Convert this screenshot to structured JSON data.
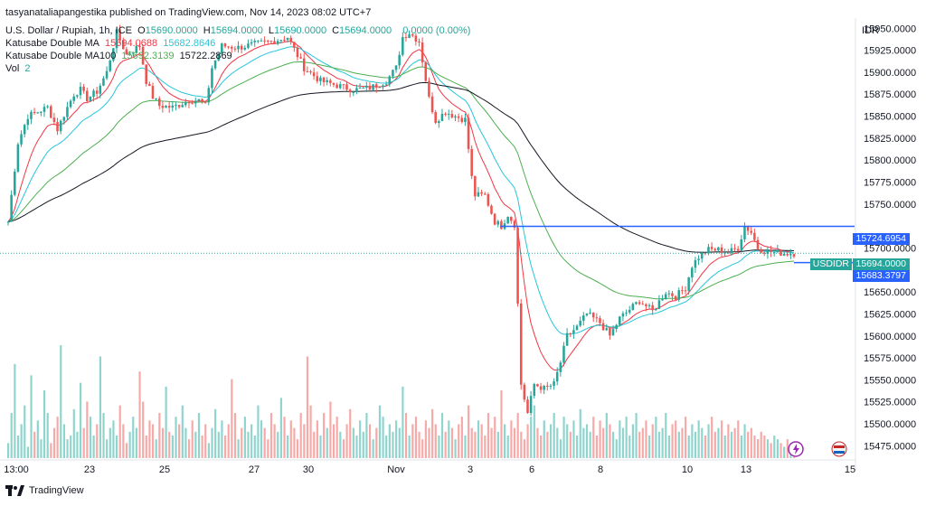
{
  "publisher_line": "tasyanataliapangestika published on TradingView.com, Nov 14, 2023 08:02 UTC+7",
  "legend": {
    "symbol": "U.S. Dollar / Rupiah, 1h, ICE",
    "ohlc": [
      {
        "label": "O",
        "value": "15690.0000"
      },
      {
        "label": "H",
        "value": "15694.0000"
      },
      {
        "label": "L",
        "value": "15690.0000"
      },
      {
        "label": "C",
        "value": "15694.0000"
      }
    ],
    "change": "0.0000 (0.00%)",
    "ma1": {
      "name": "Katusabe Double MA",
      "v1": "15694.0688",
      "v2": "15682.8646",
      "c1": "#f23645",
      "c2": "#26c6da"
    },
    "ma2": {
      "name": "Katusabe Double MA100",
      "v1": "15692.3139",
      "v2": "15722.2869",
      "c1": "#4caf50",
      "c2": "#131722"
    },
    "vol": {
      "name": "Vol",
      "value": "2",
      "color": "#26a69a"
    }
  },
  "currency": "IDR",
  "footer_brand": "TradingView",
  "price_tags": {
    "upper": {
      "value": "15724.6954",
      "color": "#2962ff"
    },
    "current": {
      "symbol": "USDIDR",
      "value": "15694.0000",
      "color": "#26a69a"
    },
    "lower": {
      "value": "15683.3797",
      "color": "#2962ff"
    }
  },
  "chart_data": {
    "type": "candlestick",
    "y_ticks": [
      "15950.0000",
      "15925.0000",
      "15900.0000",
      "15875.0000",
      "15850.0000",
      "15825.0000",
      "15800.0000",
      "15775.0000",
      "15750.0000",
      "15700.0000",
      "15650.0000",
      "15625.0000",
      "15600.0000",
      "15575.0000",
      "15550.0000",
      "15525.0000",
      "15500.0000",
      "15475.0000"
    ],
    "ylim": [
      15462,
      15962
    ],
    "x_ticks": [
      "13:00",
      "23",
      "25",
      "27",
      "30",
      "Nov",
      "3",
      "6",
      "8",
      "10",
      "13",
      "15"
    ],
    "horizontal_levels": [
      15724.6954,
      15683.3797
    ],
    "current_price": 15694.0,
    "close_path": [
      [
        0,
        15730
      ],
      [
        3,
        15820
      ],
      [
        6,
        15850
      ],
      [
        9,
        15855
      ],
      [
        12,
        15860
      ],
      [
        15,
        15835
      ],
      [
        18,
        15860
      ],
      [
        20,
        15875
      ],
      [
        22,
        15880
      ],
      [
        24,
        15870
      ],
      [
        27,
        15878
      ],
      [
        30,
        15900
      ],
      [
        33,
        15945
      ],
      [
        36,
        15920
      ],
      [
        38,
        15925
      ],
      [
        40,
        15930
      ],
      [
        42,
        15890
      ],
      [
        44,
        15872
      ],
      [
        46,
        15862
      ],
      [
        50,
        15860
      ],
      [
        55,
        15868
      ],
      [
        58,
        15868
      ],
      [
        60,
        15862
      ],
      [
        62,
        15905
      ],
      [
        65,
        15930
      ],
      [
        70,
        15928
      ],
      [
        75,
        15932
      ],
      [
        80,
        15935
      ],
      [
        85,
        15940
      ],
      [
        90,
        15905
      ],
      [
        95,
        15890
      ],
      [
        100,
        15885
      ],
      [
        105,
        15880
      ],
      [
        110,
        15882
      ],
      [
        115,
        15890
      ],
      [
        118,
        15905
      ],
      [
        120,
        15940
      ],
      [
        122,
        15945
      ],
      [
        125,
        15935
      ],
      [
        128,
        15870
      ],
      [
        130,
        15845
      ],
      [
        133,
        15855
      ],
      [
        136,
        15850
      ],
      [
        139,
        15846
      ],
      [
        141,
        15780
      ],
      [
        142,
        15760
      ],
      [
        145,
        15760
      ],
      [
        148,
        15730
      ],
      [
        150,
        15725
      ],
      [
        152,
        15738
      ],
      [
        154,
        15727
      ],
      [
        156,
        15545
      ],
      [
        158,
        15512
      ],
      [
        160,
        15545
      ],
      [
        163,
        15540
      ],
      [
        166,
        15545
      ],
      [
        168,
        15570
      ],
      [
        170,
        15600
      ],
      [
        173,
        15610
      ],
      [
        176,
        15625
      ],
      [
        180,
        15615
      ],
      [
        183,
        15600
      ],
      [
        186,
        15620
      ],
      [
        189,
        15630
      ],
      [
        192,
        15640
      ],
      [
        196,
        15628
      ],
      [
        200,
        15650
      ],
      [
        203,
        15645
      ],
      [
        206,
        15655
      ],
      [
        208,
        15680
      ],
      [
        210,
        15690
      ],
      [
        213,
        15698
      ],
      [
        216,
        15698
      ],
      [
        219,
        15695
      ],
      [
        222,
        15700
      ],
      [
        224,
        15725
      ],
      [
        226,
        15718
      ],
      [
        228,
        15700
      ],
      [
        230,
        15697
      ],
      [
        233,
        15695
      ],
      [
        236,
        15694
      ],
      [
        239,
        15694
      ]
    ],
    "volumes": [
      4,
      12,
      25,
      6,
      9,
      14,
      3,
      22,
      7,
      10,
      5,
      18,
      12,
      4,
      8,
      11,
      30,
      9,
      5,
      6,
      13,
      7,
      20,
      8,
      15,
      11,
      6,
      9,
      27,
      12,
      5,
      8,
      10,
      6,
      14,
      9,
      4,
      7,
      11,
      8,
      23,
      15,
      6,
      10,
      9,
      5,
      12,
      8,
      19,
      7,
      6,
      11,
      9,
      14,
      8,
      5,
      10,
      7,
      12,
      6,
      9,
      4,
      8,
      13,
      7,
      10,
      6,
      9,
      21,
      12,
      5,
      8,
      11,
      7,
      9,
      6,
      14,
      10,
      8,
      5,
      12,
      9,
      7,
      16,
      11,
      6,
      10,
      8,
      5,
      12,
      9,
      27,
      14,
      7,
      10,
      6,
      12,
      8,
      15,
      9,
      11,
      7,
      5,
      9,
      13,
      8,
      6,
      10,
      7,
      12,
      9,
      5,
      8,
      14,
      11,
      6,
      9,
      7,
      10,
      8,
      19,
      12,
      6,
      9,
      11,
      7,
      5,
      10,
      8,
      13,
      9,
      6,
      12,
      7,
      10,
      8,
      5,
      9,
      11,
      6,
      14,
      8,
      7,
      10,
      9,
      6,
      12,
      8,
      11,
      7,
      18,
      9,
      6,
      10,
      8,
      12,
      7,
      5,
      9,
      11,
      14,
      8,
      6,
      10,
      7,
      9,
      12,
      8,
      5,
      11,
      9,
      7,
      10,
      6,
      13,
      8,
      9,
      7,
      11,
      6,
      10,
      8,
      12,
      9,
      7,
      5,
      10,
      8,
      11,
      6,
      9,
      12,
      7,
      8,
      10,
      6,
      9,
      11,
      7,
      8,
      12,
      6,
      9,
      10,
      7,
      8,
      11,
      6,
      9,
      7,
      10,
      8,
      6,
      9,
      11,
      7,
      8,
      10,
      6,
      9,
      7,
      8,
      10,
      6,
      9,
      7,
      8,
      6,
      5,
      7,
      6,
      5,
      4,
      6,
      5,
      4,
      3,
      5,
      4,
      3,
      2
    ]
  }
}
